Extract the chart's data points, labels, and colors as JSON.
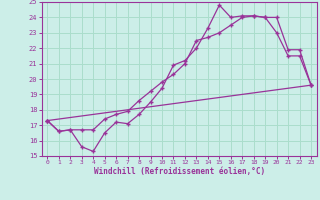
{
  "xlabel": "Windchill (Refroidissement éolien,°C)",
  "bg_color": "#cceee8",
  "grid_color": "#aaddcc",
  "line_color": "#993399",
  "xlim": [
    -0.5,
    23.5
  ],
  "ylim": [
    15,
    25
  ],
  "xticks": [
    0,
    1,
    2,
    3,
    4,
    5,
    6,
    7,
    8,
    9,
    10,
    11,
    12,
    13,
    14,
    15,
    16,
    17,
    18,
    19,
    20,
    21,
    22,
    23
  ],
  "yticks": [
    15,
    16,
    17,
    18,
    19,
    20,
    21,
    22,
    23,
    24,
    25
  ],
  "line1_x": [
    0,
    1,
    2,
    3,
    4,
    5,
    6,
    7,
    8,
    9,
    10,
    11,
    12,
    13,
    14,
    15,
    16,
    17,
    18,
    19,
    20,
    21,
    22,
    23
  ],
  "line1_y": [
    17.3,
    16.6,
    16.7,
    15.6,
    15.3,
    16.5,
    17.2,
    17.1,
    17.7,
    18.5,
    19.4,
    20.9,
    21.2,
    22.0,
    23.3,
    24.8,
    24.0,
    24.1,
    24.1,
    24.0,
    24.0,
    21.9,
    21.9,
    19.6
  ],
  "line2_x": [
    0,
    1,
    2,
    3,
    4,
    5,
    6,
    7,
    8,
    9,
    10,
    11,
    12,
    13,
    14,
    15,
    16,
    17,
    18,
    19,
    20,
    21,
    22,
    23
  ],
  "line2_y": [
    17.3,
    16.6,
    16.7,
    16.7,
    16.7,
    17.4,
    17.7,
    17.9,
    18.6,
    19.2,
    19.8,
    20.3,
    21.0,
    22.5,
    22.7,
    23.0,
    23.5,
    24.0,
    24.1,
    24.0,
    23.0,
    21.5,
    21.5,
    19.6
  ],
  "line3_x": [
    0,
    23
  ],
  "line3_y": [
    17.3,
    19.6
  ]
}
